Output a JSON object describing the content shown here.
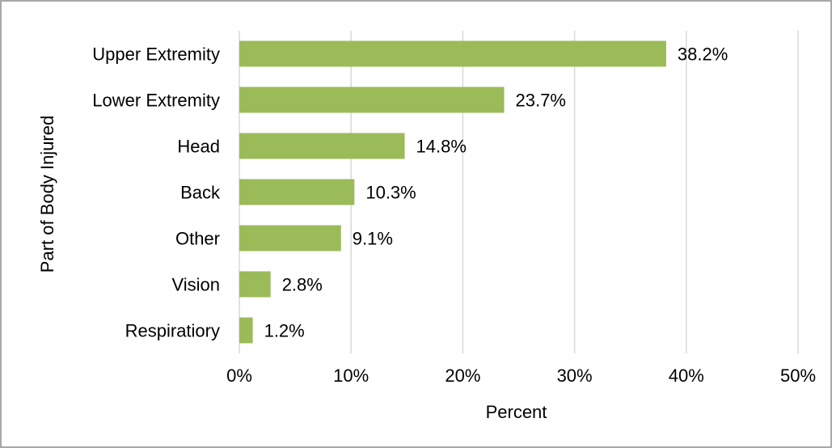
{
  "chart_data": {
    "type": "bar",
    "orientation": "horizontal",
    "categories": [
      "Upper Extremity",
      "Lower Extremity",
      "Head",
      "Back",
      "Other",
      "Vision",
      "Respiratiory"
    ],
    "values": [
      38.2,
      23.7,
      14.8,
      10.3,
      9.1,
      2.8,
      1.2
    ],
    "data_labels": [
      "38.2%",
      "23.7%",
      "14.8%",
      "10.3%",
      "9.1%",
      "2.8%",
      "1.2%"
    ],
    "x_ticks": [
      0,
      10,
      20,
      30,
      40,
      50
    ],
    "x_tick_labels": [
      "0%",
      "10%",
      "20%",
      "30%",
      "40%",
      "50%"
    ],
    "xlim": [
      0,
      50
    ],
    "xlabel": "Percent",
    "ylabel": "Part of Body Injured",
    "grid": "vertical",
    "legend": "none",
    "bar_color": "#9bbb59"
  }
}
